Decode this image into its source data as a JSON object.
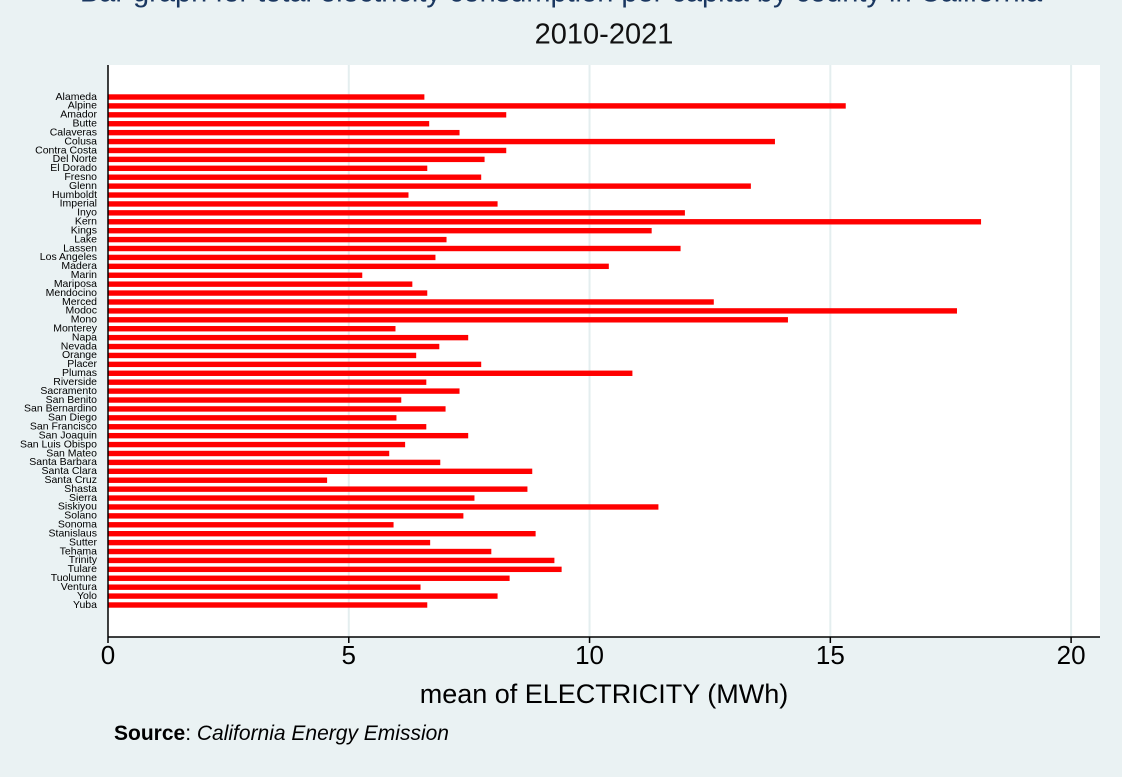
{
  "chart_data": {
    "type": "barh",
    "title": [
      "Bar graph for total electricity consumption per capita by county in California",
      "2010-2021"
    ],
    "xlabel": "mean of ELECTRICITY (MWh)",
    "source": [
      "Source",
      ": ",
      "California Energy Emission"
    ],
    "categories": [
      "Alameda",
      "Alpine",
      "Amador",
      "Butte",
      "Calaveras",
      "Colusa",
      "Contra Costa",
      "Del Norte",
      "El Dorado",
      "Fresno",
      "Glenn",
      "Humboldt",
      "Imperial",
      "Inyo",
      "Kern",
      "Kings",
      "Lake",
      "Lassen",
      "Los Angeles",
      "Madera",
      "Marin",
      "Mariposa",
      "Mendocino",
      "Merced",
      "Modoc",
      "Mono",
      "Monterey",
      "Napa",
      "Nevada",
      "Orange",
      "Placer",
      "Plumas",
      "Riverside",
      "Sacramento",
      "San Benito",
      "San Bernardino",
      "San Diego",
      "San Francisco",
      "San Joaquin",
      "San Luis Obispo",
      "San Mateo",
      "Santa Barbara",
      "Santa Clara",
      "Santa Cruz",
      "Shasta",
      "Sierra",
      "Siskiyou",
      "Solano",
      "Sonoma",
      "Stanislaus",
      "Sutter",
      "Tehama",
      "Trinity",
      "Tulare",
      "Tuolumne",
      "Ventura",
      "Yolo",
      "Yuba"
    ],
    "values": [
      6.57,
      15.32,
      8.27,
      6.67,
      7.3,
      13.85,
      8.27,
      7.82,
      6.63,
      7.75,
      13.35,
      6.24,
      8.09,
      11.98,
      18.13,
      11.29,
      7.03,
      11.89,
      6.8,
      10.4,
      5.28,
      6.32,
      6.63,
      12.58,
      17.63,
      14.12,
      5.97,
      7.48,
      6.88,
      6.4,
      7.75,
      10.89,
      6.61,
      7.3,
      6.09,
      7.01,
      5.99,
      6.61,
      7.48,
      6.17,
      5.84,
      6.9,
      8.81,
      4.55,
      8.71,
      7.61,
      11.43,
      7.38,
      5.93,
      8.88,
      6.69,
      7.96,
      9.27,
      9.42,
      8.34,
      6.49,
      8.09,
      6.63
    ],
    "color": "#ff0000",
    "xlim": [
      0,
      20.6
    ],
    "xticks": [
      0,
      5,
      10,
      15,
      20
    ],
    "grid": true
  }
}
